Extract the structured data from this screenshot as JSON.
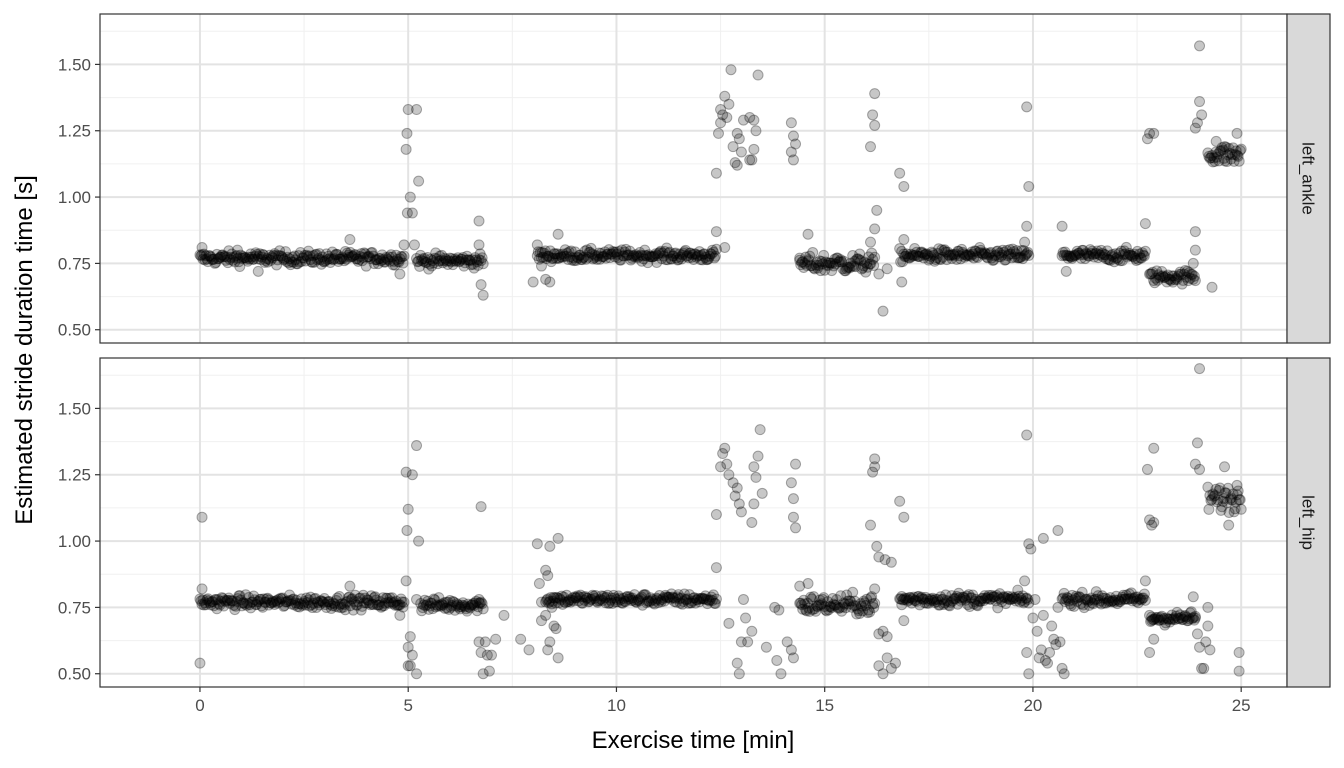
{
  "chart_data": {
    "type": "scatter",
    "xlabel": "Exercise time [min]",
    "ylabel": "Estimated stride duration time [s]",
    "xlim": [
      -2.4,
      26.1
    ],
    "ylim": [
      0.45,
      1.69
    ],
    "x_ticks": [
      0,
      5,
      10,
      15,
      20,
      25
    ],
    "x_tick_labels": [
      "0",
      "5",
      "10",
      "15",
      "20",
      "25"
    ],
    "y_ticks": [
      0.5,
      0.75,
      1.0,
      1.25,
      1.5
    ],
    "y_tick_labels": [
      "0.50",
      "0.75",
      "1.00",
      "1.25",
      "1.50"
    ],
    "grid": true,
    "point_color": "#000000",
    "point_opacity": 0.22,
    "panels": [
      {
        "name": "left_ankle",
        "segments": [
          [
            0.0,
            4.9,
            0.77,
            0.02
          ],
          [
            5.2,
            6.8,
            0.76,
            0.02
          ],
          [
            8.1,
            12.4,
            0.78,
            0.018
          ],
          [
            14.4,
            16.2,
            0.75,
            0.03
          ],
          [
            16.8,
            19.9,
            0.78,
            0.02
          ],
          [
            20.7,
            22.7,
            0.78,
            0.02
          ],
          [
            22.8,
            23.9,
            0.7,
            0.02
          ],
          [
            24.2,
            25.0,
            1.16,
            0.03
          ]
        ],
        "outliers": [
          [
            0.05,
            0.81
          ],
          [
            0.9,
            0.8
          ],
          [
            1.4,
            0.72
          ],
          [
            3.6,
            0.84
          ],
          [
            4.8,
            0.71
          ],
          [
            4.95,
            1.18
          ],
          [
            4.97,
            1.24
          ],
          [
            5.0,
            1.33
          ],
          [
            5.2,
            1.33
          ],
          [
            5.25,
            1.06
          ],
          [
            5.05,
            1.0
          ],
          [
            4.98,
            0.94
          ],
          [
            5.1,
            0.94
          ],
          [
            5.15,
            0.82
          ],
          [
            4.9,
            0.82
          ],
          [
            6.7,
            0.91
          ],
          [
            6.75,
            0.67
          ],
          [
            6.8,
            0.63
          ],
          [
            6.7,
            0.82
          ],
          [
            8.0,
            0.68
          ],
          [
            8.1,
            0.82
          ],
          [
            8.3,
            0.69
          ],
          [
            8.4,
            0.68
          ],
          [
            8.6,
            0.86
          ],
          [
            8.2,
            0.74
          ],
          [
            12.4,
            1.09
          ],
          [
            12.45,
            1.24
          ],
          [
            12.5,
            1.28
          ],
          [
            12.5,
            1.33
          ],
          [
            12.55,
            1.31
          ],
          [
            12.6,
            1.38
          ],
          [
            12.65,
            1.3
          ],
          [
            12.7,
            1.35
          ],
          [
            12.75,
            1.48
          ],
          [
            12.8,
            1.19
          ],
          [
            12.85,
            1.13
          ],
          [
            12.9,
            1.24
          ],
          [
            12.95,
            1.22
          ],
          [
            13.0,
            1.17
          ],
          [
            13.05,
            1.29
          ],
          [
            12.9,
            1.12
          ],
          [
            13.2,
            1.3
          ],
          [
            13.25,
            1.14
          ],
          [
            13.3,
            1.18
          ],
          [
            13.35,
            1.25
          ],
          [
            13.4,
            1.46
          ],
          [
            13.3,
            1.29
          ],
          [
            13.2,
            1.14
          ],
          [
            12.4,
            0.87
          ],
          [
            12.6,
            0.81
          ],
          [
            14.2,
            1.28
          ],
          [
            14.25,
            1.23
          ],
          [
            14.2,
            1.17
          ],
          [
            14.25,
            1.14
          ],
          [
            14.3,
            1.2
          ],
          [
            14.6,
            0.86
          ],
          [
            14.4,
            0.77
          ],
          [
            16.1,
            1.19
          ],
          [
            16.15,
            1.31
          ],
          [
            16.2,
            1.27
          ],
          [
            16.2,
            1.39
          ],
          [
            16.25,
            0.95
          ],
          [
            16.3,
            0.71
          ],
          [
            16.4,
            0.57
          ],
          [
            16.5,
            0.73
          ],
          [
            16.2,
            0.88
          ],
          [
            16.1,
            0.83
          ],
          [
            16.8,
            1.09
          ],
          [
            16.9,
            1.04
          ],
          [
            16.85,
            0.68
          ],
          [
            16.9,
            0.84
          ],
          [
            19.85,
            1.34
          ],
          [
            19.9,
            1.04
          ],
          [
            19.85,
            0.89
          ],
          [
            19.8,
            0.83
          ],
          [
            20.7,
            0.89
          ],
          [
            20.8,
            0.72
          ],
          [
            22.7,
            0.9
          ],
          [
            22.75,
            1.22
          ],
          [
            22.8,
            1.24
          ],
          [
            22.9,
            1.24
          ],
          [
            23.9,
            1.26
          ],
          [
            23.95,
            1.28
          ],
          [
            24.0,
            1.36
          ],
          [
            24.05,
            1.31
          ],
          [
            24.0,
            1.57
          ],
          [
            23.9,
            0.87
          ],
          [
            23.9,
            0.8
          ],
          [
            23.85,
            0.75
          ],
          [
            24.3,
            0.66
          ],
          [
            24.4,
            1.21
          ],
          [
            24.6,
            1.19
          ],
          [
            24.9,
            1.24
          ]
        ]
      },
      {
        "name": "left_hip",
        "segments": [
          [
            0.0,
            4.9,
            0.77,
            0.02
          ],
          [
            5.3,
            6.8,
            0.76,
            0.02
          ],
          [
            8.3,
            12.4,
            0.78,
            0.018
          ],
          [
            14.4,
            16.2,
            0.76,
            0.03
          ],
          [
            16.8,
            19.9,
            0.78,
            0.02
          ],
          [
            20.7,
            22.7,
            0.78,
            0.02
          ],
          [
            22.8,
            23.9,
            0.71,
            0.02
          ],
          [
            24.2,
            25.0,
            1.16,
            0.04
          ]
        ],
        "outliers": [
          [
            0.05,
            1.09
          ],
          [
            0.0,
            0.54
          ],
          [
            0.05,
            0.82
          ],
          [
            3.6,
            0.83
          ],
          [
            4.8,
            0.72
          ],
          [
            4.95,
            1.26
          ],
          [
            4.97,
            1.04
          ],
          [
            5.0,
            1.12
          ],
          [
            5.1,
            1.25
          ],
          [
            5.2,
            1.36
          ],
          [
            5.25,
            1.0
          ],
          [
            4.95,
            0.85
          ],
          [
            5.05,
            0.64
          ],
          [
            5.0,
            0.6
          ],
          [
            5.1,
            0.57
          ],
          [
            5.0,
            0.53
          ],
          [
            5.05,
            0.53
          ],
          [
            5.2,
            0.5
          ],
          [
            5.2,
            0.78
          ],
          [
            6.7,
            0.62
          ],
          [
            6.75,
            0.58
          ],
          [
            6.8,
            0.5
          ],
          [
            6.85,
            0.62
          ],
          [
            6.9,
            0.57
          ],
          [
            7.0,
            0.57
          ],
          [
            7.1,
            0.63
          ],
          [
            6.95,
            0.51
          ],
          [
            7.3,
            0.72
          ],
          [
            6.75,
            1.13
          ],
          [
            6.7,
            0.78
          ],
          [
            7.7,
            0.63
          ],
          [
            7.9,
            0.59
          ],
          [
            8.1,
            0.99
          ],
          [
            8.15,
            0.84
          ],
          [
            8.2,
            0.77
          ],
          [
            8.3,
            0.89
          ],
          [
            8.35,
            0.87
          ],
          [
            8.4,
            0.98
          ],
          [
            8.45,
            0.75
          ],
          [
            8.3,
            0.72
          ],
          [
            8.5,
            0.68
          ],
          [
            8.55,
            0.67
          ],
          [
            8.6,
            1.01
          ],
          [
            8.6,
            0.56
          ],
          [
            8.35,
            0.59
          ],
          [
            8.4,
            0.62
          ],
          [
            8.2,
            0.7
          ],
          [
            12.4,
            1.1
          ],
          [
            12.5,
            1.28
          ],
          [
            12.55,
            1.33
          ],
          [
            12.6,
            1.35
          ],
          [
            12.65,
            1.29
          ],
          [
            12.7,
            1.25
          ],
          [
            12.8,
            1.22
          ],
          [
            12.85,
            1.17
          ],
          [
            12.9,
            1.2
          ],
          [
            12.95,
            1.14
          ],
          [
            13.0,
            1.11
          ],
          [
            12.4,
            0.9
          ],
          [
            12.7,
            0.69
          ],
          [
            12.9,
            0.54
          ],
          [
            12.95,
            0.5
          ],
          [
            13.0,
            0.62
          ],
          [
            13.05,
            0.78
          ],
          [
            13.1,
            0.71
          ],
          [
            13.15,
            0.62
          ],
          [
            13.25,
            0.66
          ],
          [
            13.25,
            1.07
          ],
          [
            13.3,
            1.14
          ],
          [
            13.3,
            1.28
          ],
          [
            13.35,
            1.24
          ],
          [
            13.4,
            1.32
          ],
          [
            13.45,
            1.42
          ],
          [
            13.5,
            1.18
          ],
          [
            13.6,
            0.6
          ],
          [
            13.8,
            0.75
          ],
          [
            13.85,
            0.55
          ],
          [
            13.9,
            0.74
          ],
          [
            13.95,
            0.5
          ],
          [
            14.1,
            0.62
          ],
          [
            14.2,
            0.59
          ],
          [
            14.25,
            0.56
          ],
          [
            14.2,
            1.22
          ],
          [
            14.25,
            1.16
          ],
          [
            14.3,
            1.29
          ],
          [
            14.25,
            1.09
          ],
          [
            14.3,
            1.05
          ],
          [
            14.4,
            0.83
          ],
          [
            14.6,
            0.84
          ],
          [
            16.1,
            1.06
          ],
          [
            16.15,
            1.26
          ],
          [
            16.2,
            1.28
          ],
          [
            16.2,
            1.31
          ],
          [
            16.25,
            0.98
          ],
          [
            16.3,
            0.94
          ],
          [
            16.45,
            0.93
          ],
          [
            16.3,
            0.65
          ],
          [
            16.4,
            0.66
          ],
          [
            16.5,
            0.64
          ],
          [
            16.3,
            0.53
          ],
          [
            16.4,
            0.5
          ],
          [
            16.5,
            0.56
          ],
          [
            16.6,
            0.52
          ],
          [
            16.7,
            0.54
          ],
          [
            16.6,
            0.92
          ],
          [
            16.8,
            1.15
          ],
          [
            16.9,
            1.09
          ],
          [
            16.9,
            0.7
          ],
          [
            16.85,
            0.76
          ],
          [
            16.2,
            0.82
          ],
          [
            19.85,
            1.4
          ],
          [
            19.9,
            0.99
          ],
          [
            19.95,
            0.97
          ],
          [
            19.8,
            0.85
          ],
          [
            19.85,
            0.58
          ],
          [
            19.9,
            0.5
          ],
          [
            20.0,
            0.71
          ],
          [
            20.05,
            0.78
          ],
          [
            20.1,
            0.66
          ],
          [
            20.15,
            0.56
          ],
          [
            20.2,
            0.59
          ],
          [
            20.25,
            0.72
          ],
          [
            20.3,
            0.55
          ],
          [
            20.35,
            0.54
          ],
          [
            20.4,
            0.58
          ],
          [
            20.45,
            0.68
          ],
          [
            20.5,
            0.63
          ],
          [
            20.55,
            0.61
          ],
          [
            20.6,
            0.75
          ],
          [
            20.65,
            0.62
          ],
          [
            20.7,
            0.52
          ],
          [
            20.75,
            0.5
          ],
          [
            20.6,
            1.04
          ],
          [
            20.25,
            1.01
          ],
          [
            22.7,
            0.85
          ],
          [
            22.75,
            1.27
          ],
          [
            22.8,
            1.08
          ],
          [
            22.85,
            1.06
          ],
          [
            22.9,
            1.07
          ],
          [
            22.9,
            1.35
          ],
          [
            22.8,
            0.58
          ],
          [
            22.85,
            0.7
          ],
          [
            22.9,
            0.63
          ],
          [
            23.9,
            1.29
          ],
          [
            23.95,
            1.37
          ],
          [
            24.0,
            1.27
          ],
          [
            24.0,
            1.65
          ],
          [
            23.85,
            0.79
          ],
          [
            23.9,
            0.71
          ],
          [
            23.95,
            0.65
          ],
          [
            24.0,
            0.6
          ],
          [
            24.05,
            0.52
          ],
          [
            24.1,
            0.52
          ],
          [
            24.15,
            0.62
          ],
          [
            24.2,
            0.68
          ],
          [
            24.2,
            0.75
          ],
          [
            24.25,
            0.59
          ],
          [
            24.6,
            1.28
          ],
          [
            24.7,
            1.06
          ],
          [
            24.9,
            1.21
          ],
          [
            24.95,
            0.58
          ],
          [
            24.95,
            0.51
          ]
        ]
      }
    ]
  }
}
